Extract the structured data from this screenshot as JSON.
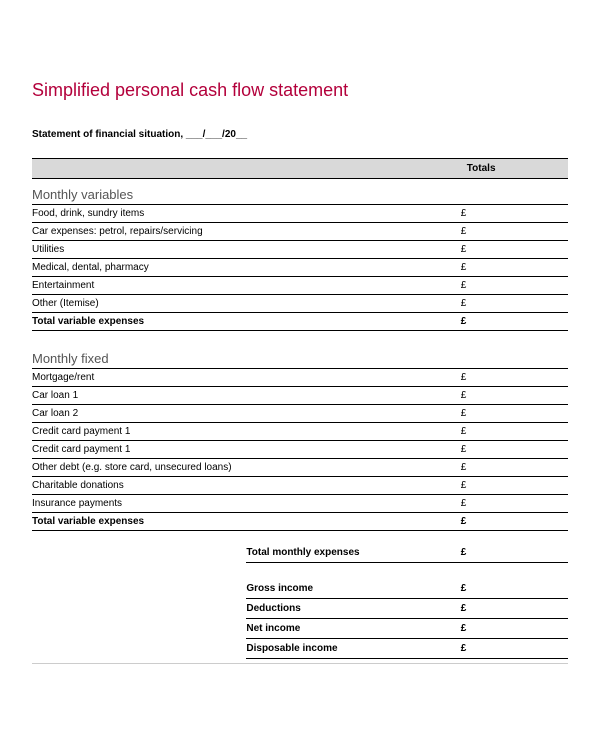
{
  "title": {
    "text": "Simplified personal cash flow statement",
    "color": "#b3003b",
    "fontsize": 18
  },
  "subtitle": "Statement of financial situation, ___/___/20__",
  "currency_symbol": "£",
  "header": {
    "totals_label": "Totals"
  },
  "sections": [
    {
      "heading": "Monthly variables",
      "rows": [
        "Food, drink, sundry items",
        "Car expenses: petrol, repairs/servicing",
        "Utilities",
        "Medical, dental, pharmacy",
        "Entertainment",
        "Other (Itemise)"
      ],
      "total_label": "Total variable expenses"
    },
    {
      "heading": "Monthly fixed",
      "rows": [
        "Mortgage/rent",
        "Car loan 1",
        "Car loan 2",
        "Credit card payment 1",
        "Credit card payment 1",
        "Other debt (e.g. store card, unsecured loans)",
        "Charitable donations",
        "Insurance payments"
      ],
      "total_label": "Total variable expenses"
    }
  ],
  "summary_top": [
    {
      "label": "Total monthly expenses"
    }
  ],
  "summary_bottom": [
    {
      "label": "Gross income"
    },
    {
      "label": "Deductions"
    },
    {
      "label": "Net income"
    },
    {
      "label": "Disposable income"
    }
  ],
  "colors": {
    "text": "#000000",
    "section_text": "#555555",
    "header_bg": "#d9d9d9",
    "rule": "#000000",
    "page_rule": "#cccccc",
    "background": "#ffffff"
  }
}
